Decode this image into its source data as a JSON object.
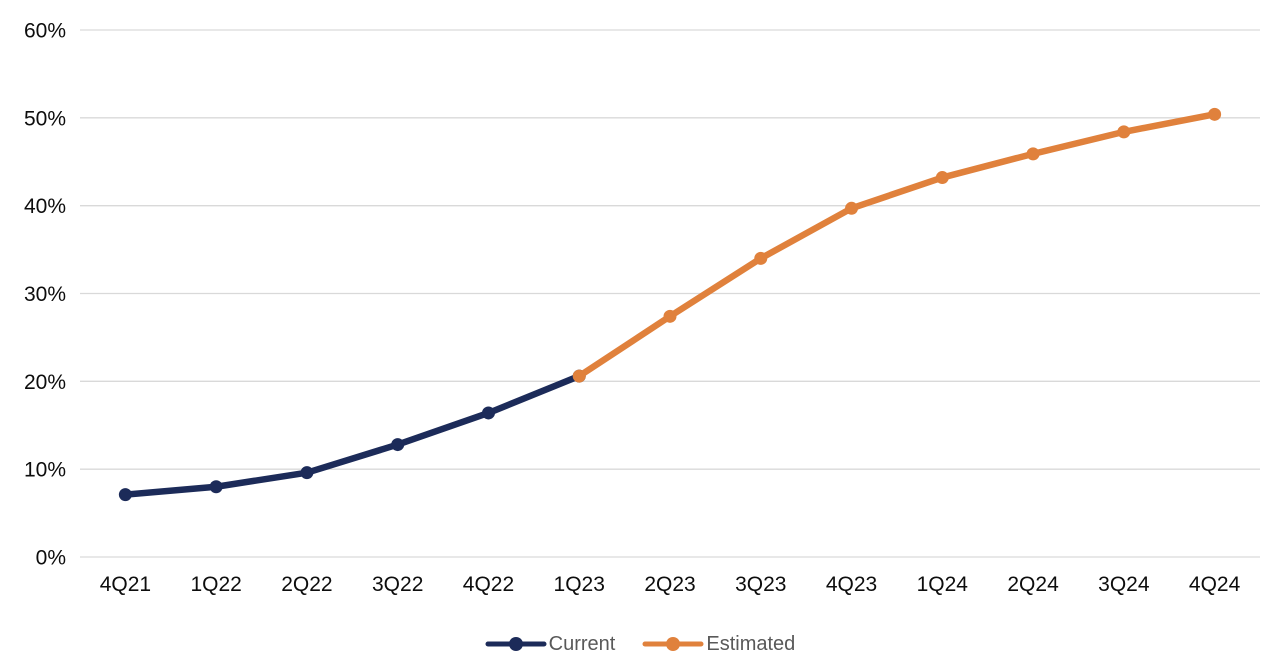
{
  "chart_data": {
    "type": "line",
    "categories": [
      "4Q21",
      "1Q22",
      "2Q22",
      "3Q22",
      "4Q22",
      "1Q23",
      "2Q23",
      "3Q23",
      "4Q23",
      "1Q24",
      "2Q24",
      "3Q24",
      "4Q24"
    ],
    "series": [
      {
        "name": "Current",
        "color": "#1C2B59",
        "values": [
          7.1,
          8.0,
          9.6,
          12.8,
          16.4,
          20.6,
          null,
          null,
          null,
          null,
          null,
          null,
          null
        ]
      },
      {
        "name": "Estimated",
        "color": "#E0813C",
        "values": [
          null,
          null,
          null,
          null,
          null,
          20.6,
          27.4,
          34.0,
          39.7,
          43.2,
          45.9,
          48.4,
          50.4
        ]
      }
    ],
    "title": "",
    "xlabel": "",
    "ylabel": "",
    "ylim": [
      0,
      60
    ],
    "ytick_step": 10,
    "ytick_labels": [
      "0%",
      "10%",
      "20%",
      "30%",
      "40%",
      "50%",
      "60%"
    ],
    "grid": true,
    "marker": "circle",
    "legend_position": "bottom-center",
    "colors": {
      "gridline": "#D9D9D9",
      "tick_label": "#0D0D0D",
      "legend_text": "#595959",
      "background": "#FFFFFF"
    }
  }
}
